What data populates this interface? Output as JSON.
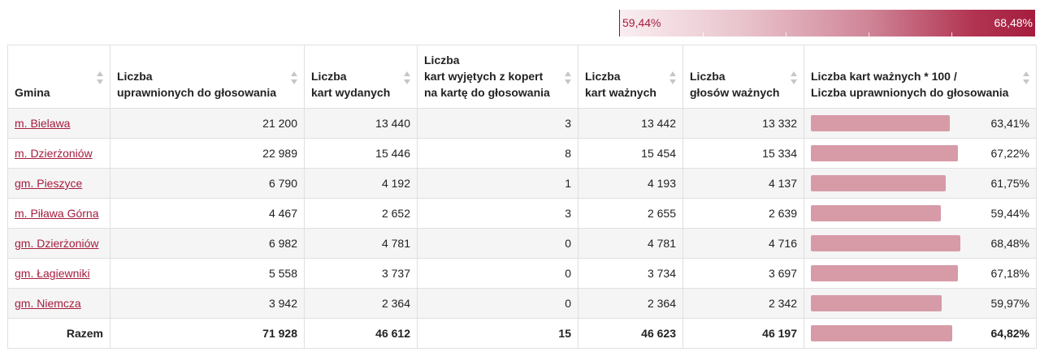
{
  "legend": {
    "min_label": "59,44%",
    "max_label": "68,48%",
    "min_value": 59.44,
    "max_value": 68.48,
    "color_low": "#f9eef1",
    "color_high": "#a51c3e"
  },
  "headers": [
    {
      "text": "Gmina"
    },
    {
      "text": "Liczba\nuprawnionych do głosowania"
    },
    {
      "text": "Liczba\nkart wydanych"
    },
    {
      "text": "Liczba\nkart wyjętych z kopert\nna kartę do głosowania"
    },
    {
      "text": "Liczba\nkart ważnych"
    },
    {
      "text": "Liczba\ngłosów ważnych"
    },
    {
      "text": "Liczba kart ważnych * 100 /\nLiczba uprawnionych do głosowania"
    }
  ],
  "rows": [
    {
      "gmina": "m. Bielawa",
      "uprawnionych": "21 200",
      "wydanych": "13 440",
      "wyjetych": "3",
      "waznych_kart": "13 442",
      "waznych_glosow": "13 332",
      "procent_label": "63,41%",
      "procent": 63.41
    },
    {
      "gmina": "m. Dzierżoniów",
      "uprawnionych": "22 989",
      "wydanych": "15 446",
      "wyjetych": "8",
      "waznych_kart": "15 454",
      "waznych_glosow": "15 334",
      "procent_label": "67,22%",
      "procent": 67.22
    },
    {
      "gmina": "gm. Pieszyce",
      "uprawnionych": "6 790",
      "wydanych": "4 192",
      "wyjetych": "1",
      "waznych_kart": "4 193",
      "waznych_glosow": "4 137",
      "procent_label": "61,75%",
      "procent": 61.75
    },
    {
      "gmina": "m. Piława Górna",
      "uprawnionych": "4 467",
      "wydanych": "2 652",
      "wyjetych": "3",
      "waznych_kart": "2 655",
      "waznych_glosow": "2 639",
      "procent_label": "59,44%",
      "procent": 59.44
    },
    {
      "gmina": "gm. Dzierżoniów",
      "uprawnionych": "6 982",
      "wydanych": "4 781",
      "wyjetych": "0",
      "waznych_kart": "4 781",
      "waznych_glosow": "4 716",
      "procent_label": "68,48%",
      "procent": 68.48
    },
    {
      "gmina": "gm. Łagiewniki",
      "uprawnionych": "5 558",
      "wydanych": "3 737",
      "wyjetych": "0",
      "waznych_kart": "3 734",
      "waznych_glosow": "3 697",
      "procent_label": "67,18%",
      "procent": 67.18
    },
    {
      "gmina": "gm. Niemcza",
      "uprawnionych": "3 942",
      "wydanych": "2 364",
      "wyjetych": "0",
      "waznych_kart": "2 364",
      "waznych_glosow": "2 342",
      "procent_label": "59,97%",
      "procent": 59.97
    }
  ],
  "total": {
    "gmina": "Razem",
    "uprawnionych": "71 928",
    "wydanych": "46 612",
    "wyjetych": "15",
    "waznych_kart": "46 623",
    "waznych_glosow": "46 197",
    "procent_label": "64,82%",
    "procent": 64.82
  },
  "bar_color": "#d79ba8",
  "link_color": "#a51c3e"
}
